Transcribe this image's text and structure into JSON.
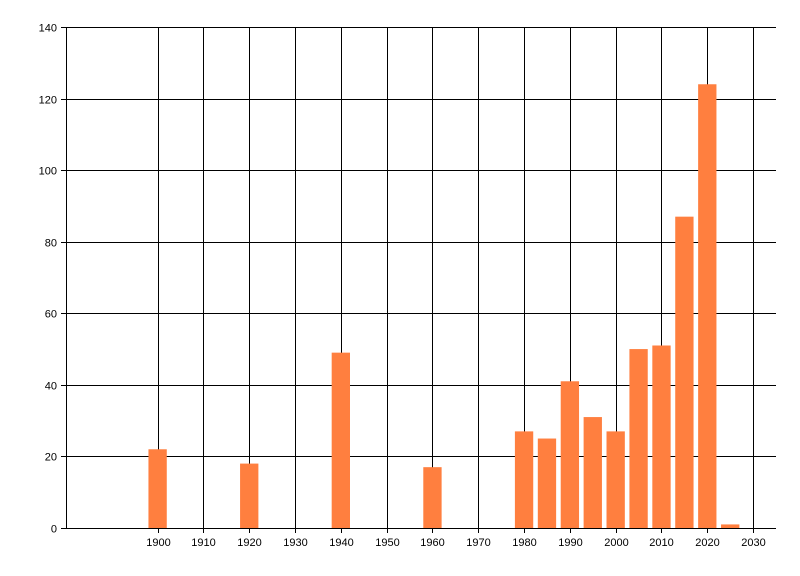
{
  "chart_data": {
    "type": "bar",
    "x": [
      1900,
      1920,
      1940,
      1960,
      1980,
      1985,
      1990,
      1995,
      2000,
      2005,
      2010,
      2015,
      2020,
      2025
    ],
    "values": [
      22,
      18,
      49,
      17,
      27,
      25,
      41,
      31,
      27,
      50,
      51,
      87,
      124,
      1
    ],
    "bar_color": "#FF7F3F",
    "xlim": [
      1880,
      2035
    ],
    "ylim": [
      0,
      140
    ],
    "xticks": [
      1900,
      1910,
      1920,
      1930,
      1940,
      1950,
      1960,
      1970,
      1980,
      1990,
      2000,
      2010,
      2020,
      2030
    ],
    "yticks": [
      0,
      20,
      40,
      60,
      80,
      100,
      120,
      140
    ],
    "grid": true,
    "title": "",
    "xlabel": "",
    "ylabel": ""
  }
}
